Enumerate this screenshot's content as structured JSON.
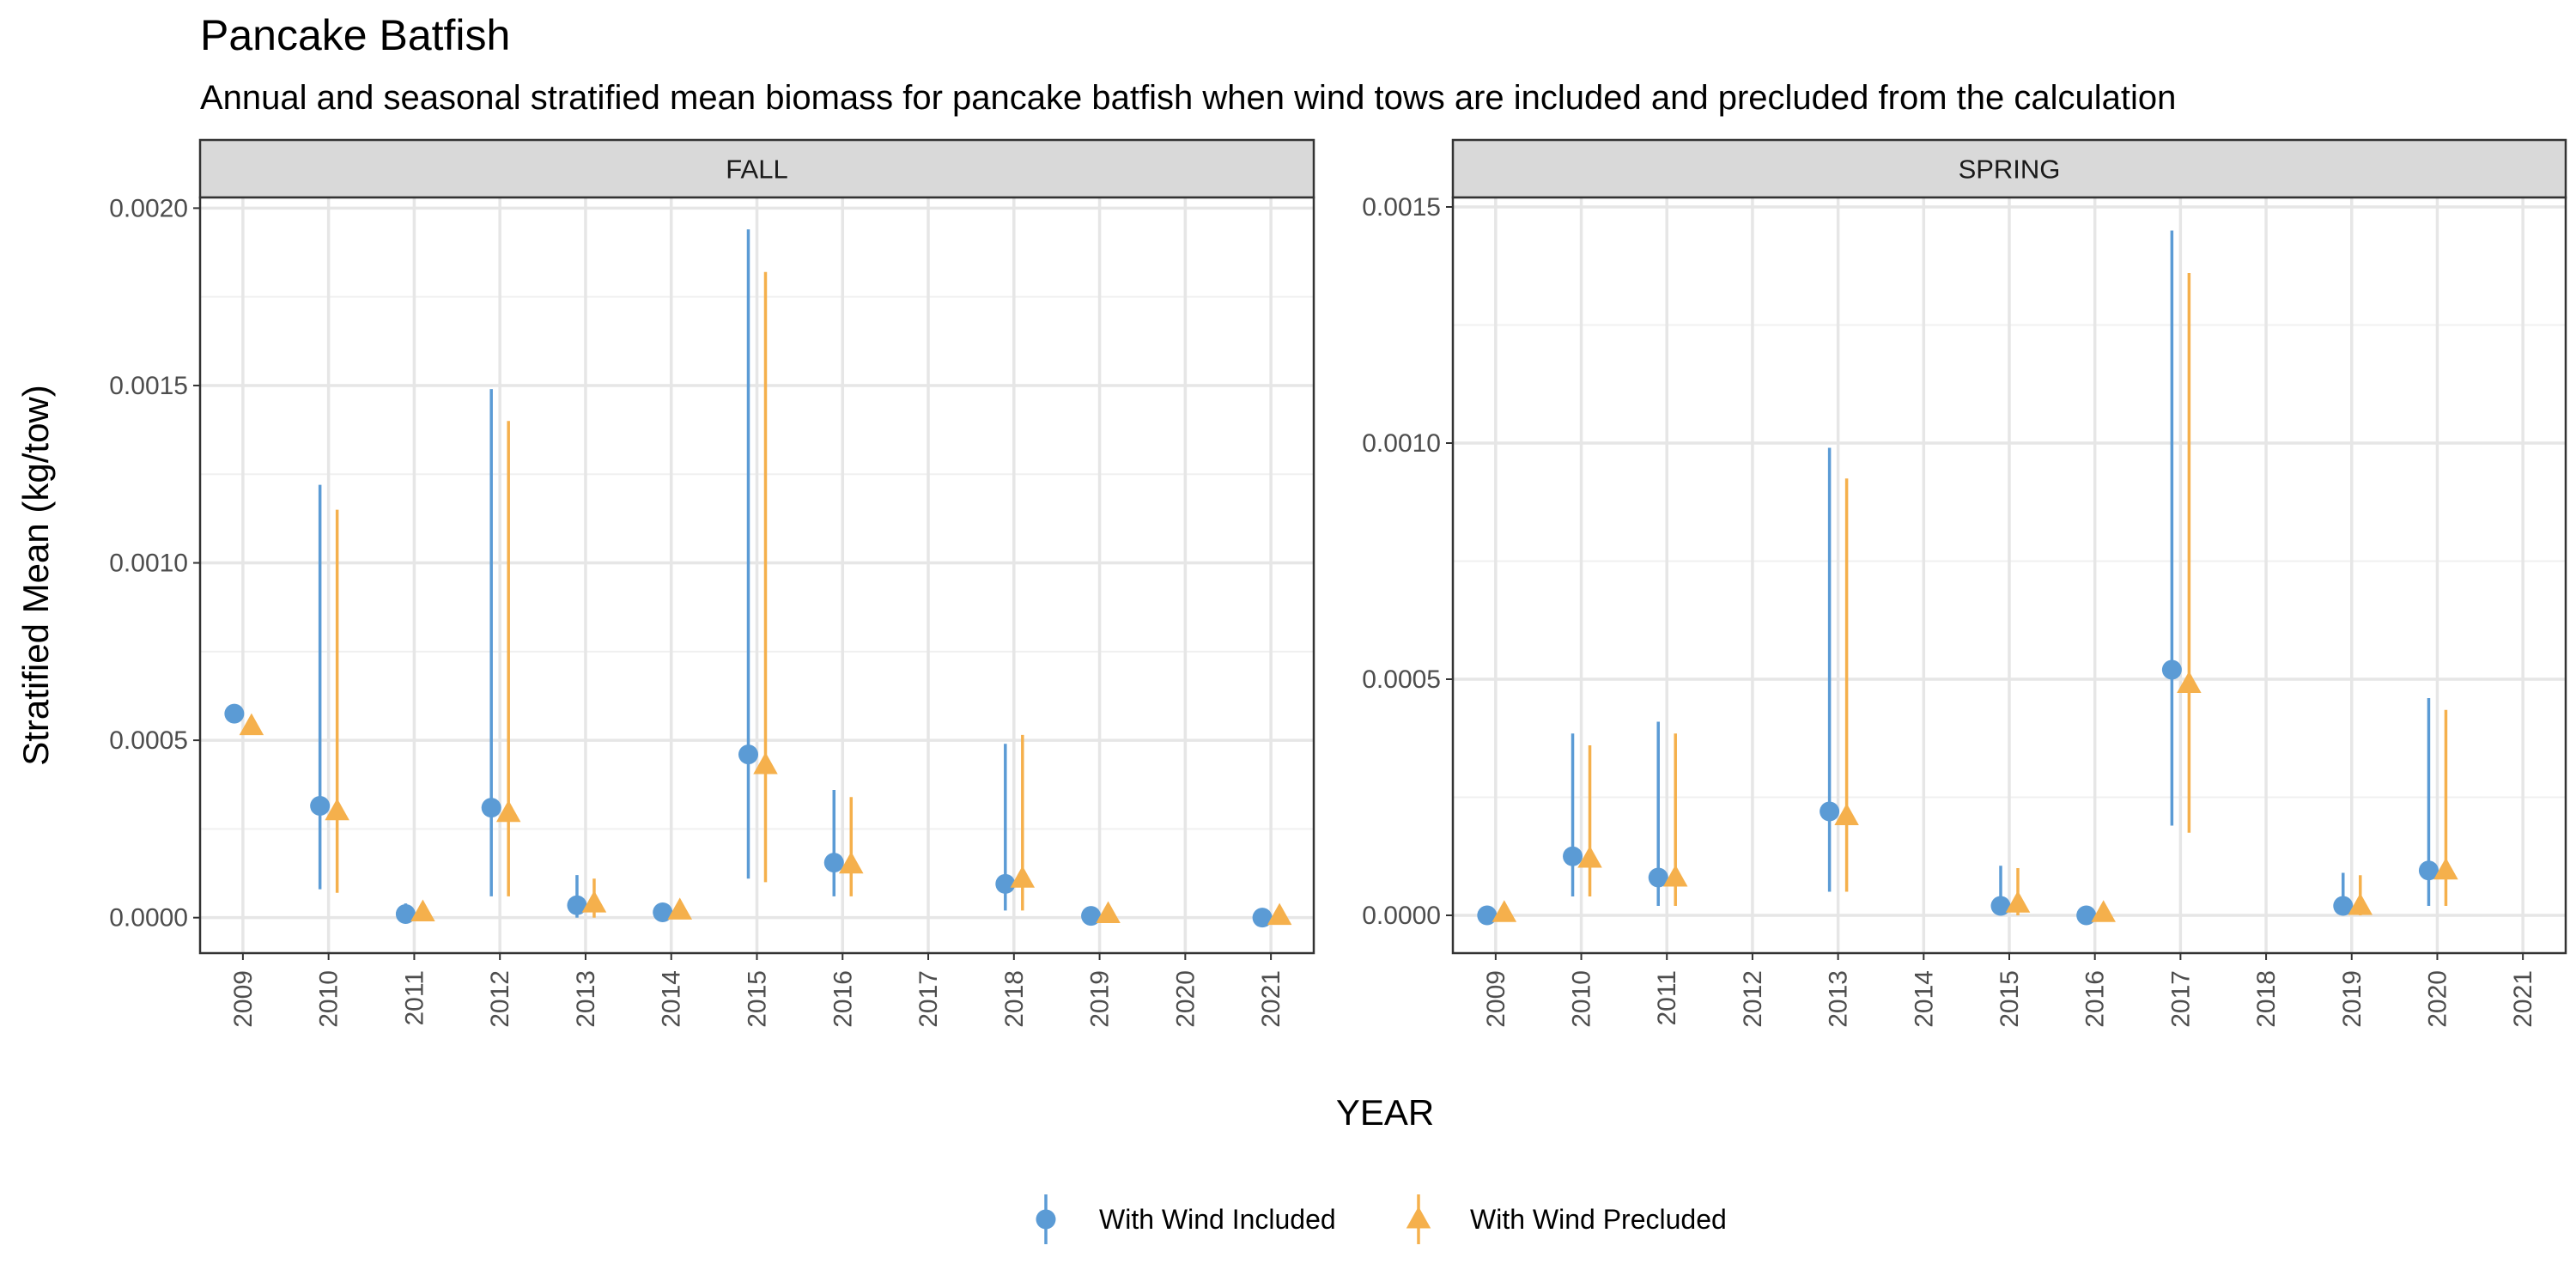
{
  "title": "Pancake Batfish",
  "subtitle": "Annual and seasonal stratified mean biomass for pancake batfish when wind tows are included and precluded from the calculation",
  "chart_data": {
    "type": "scatter",
    "subtype": "point-range",
    "title": "Pancake Batfish",
    "subtitle": "Annual and seasonal stratified mean biomass for pancake batfish when wind tows are included and precluded from the calculation",
    "xlabel": "YEAR",
    "ylabel": "Stratified Mean (kg/tow)",
    "x_categories": [
      "2009",
      "2010",
      "2011",
      "2012",
      "2013",
      "2014",
      "2015",
      "2016",
      "2017",
      "2018",
      "2019",
      "2020",
      "2021"
    ],
    "legend_position": "bottom",
    "grid": true,
    "series_styles": [
      {
        "name": "With Wind Included",
        "color": "#5b9bd5",
        "marker": "circle"
      },
      {
        "name": "With Wind Precluded",
        "color": "#f5b04c",
        "marker": "triangle"
      }
    ],
    "panels": [
      {
        "name": "FALL",
        "ylim": [
          -0.0001,
          0.00203
        ],
        "yticks": [
          0.0,
          0.0005,
          0.001,
          0.0015,
          0.002
        ],
        "ytick_labels": [
          "0.0000",
          "0.0005",
          "0.0010",
          "0.0015",
          "0.0020"
        ],
        "series": [
          {
            "name": "With Wind Included",
            "points": [
              {
                "x": "2009",
                "y": 0.000575,
                "lo": null,
                "hi": null
              },
              {
                "x": "2010",
                "y": 0.000315,
                "lo": 8e-05,
                "hi": 0.00122
              },
              {
                "x": "2011",
                "y": 1e-05,
                "lo": 0.0,
                "hi": 4e-05
              },
              {
                "x": "2012",
                "y": 0.00031,
                "lo": 6e-05,
                "hi": 0.00149
              },
              {
                "x": "2013",
                "y": 3.5e-05,
                "lo": 0.0,
                "hi": 0.00012
              },
              {
                "x": "2014",
                "y": 1.5e-05,
                "lo": 0.0,
                "hi": 4e-05
              },
              {
                "x": "2015",
                "y": 0.00046,
                "lo": 0.00011,
                "hi": 0.00194
              },
              {
                "x": "2016",
                "y": 0.000155,
                "lo": 6e-05,
                "hi": 0.00036
              },
              {
                "x": "2018",
                "y": 9.5e-05,
                "lo": 2e-05,
                "hi": 0.00049
              },
              {
                "x": "2019",
                "y": 5e-06,
                "lo": 0.0,
                "hi": 2e-05
              },
              {
                "x": "2021",
                "y": 0.0,
                "lo": null,
                "hi": null
              }
            ]
          },
          {
            "name": "With Wind Precluded",
            "points": [
              {
                "x": "2009",
                "y": 0.00054,
                "lo": null,
                "hi": null
              },
              {
                "x": "2010",
                "y": 0.0003,
                "lo": 7e-05,
                "hi": 0.00115
              },
              {
                "x": "2011",
                "y": 1.5e-05,
                "lo": 0.0,
                "hi": 4e-05
              },
              {
                "x": "2012",
                "y": 0.000295,
                "lo": 6e-05,
                "hi": 0.0014
              },
              {
                "x": "2013",
                "y": 4e-05,
                "lo": 0.0,
                "hi": 0.00011
              },
              {
                "x": "2014",
                "y": 2e-05,
                "lo": 0.0,
                "hi": 4e-05
              },
              {
                "x": "2015",
                "y": 0.00043,
                "lo": 0.0001,
                "hi": 0.00182
              },
              {
                "x": "2016",
                "y": 0.00015,
                "lo": 6e-05,
                "hi": 0.00034
              },
              {
                "x": "2018",
                "y": 0.00011,
                "lo": 2e-05,
                "hi": 0.000515
              },
              {
                "x": "2019",
                "y": 1e-05,
                "lo": 0.0,
                "hi": 3e-05
              },
              {
                "x": "2021",
                "y": 5e-06,
                "lo": null,
                "hi": null
              }
            ]
          }
        ]
      },
      {
        "name": "SPRING",
        "ylim": [
          -8e-05,
          0.00152
        ],
        "yticks": [
          0.0,
          0.0005,
          0.001,
          0.0015
        ],
        "ytick_labels": [
          "0.0000",
          "0.0005",
          "0.0010",
          "0.0015"
        ],
        "series": [
          {
            "name": "With Wind Included",
            "points": [
              {
                "x": "2009",
                "y": 0.0,
                "lo": null,
                "hi": null
              },
              {
                "x": "2010",
                "y": 0.000125,
                "lo": 4e-05,
                "hi": 0.000385
              },
              {
                "x": "2011",
                "y": 8e-05,
                "lo": 2e-05,
                "hi": 0.00041
              },
              {
                "x": "2013",
                "y": 0.00022,
                "lo": 5e-05,
                "hi": 0.00099
              },
              {
                "x": "2015",
                "y": 2e-05,
                "lo": 0.0,
                "hi": 0.000105
              },
              {
                "x": "2016",
                "y": 0.0,
                "lo": null,
                "hi": null
              },
              {
                "x": "2017",
                "y": 0.00052,
                "lo": 0.00019,
                "hi": 0.00145
              },
              {
                "x": "2019",
                "y": 2e-05,
                "lo": 0.0,
                "hi": 9e-05
              },
              {
                "x": "2020",
                "y": 9.5e-05,
                "lo": 2e-05,
                "hi": 0.00046
              }
            ]
          },
          {
            "name": "With Wind Precluded",
            "points": [
              {
                "x": "2009",
                "y": 5e-06,
                "lo": null,
                "hi": null
              },
              {
                "x": "2010",
                "y": 0.00012,
                "lo": 4e-05,
                "hi": 0.00036
              },
              {
                "x": "2011",
                "y": 8e-05,
                "lo": 2e-05,
                "hi": 0.000385
              },
              {
                "x": "2013",
                "y": 0.00021,
                "lo": 5e-05,
                "hi": 0.000925
              },
              {
                "x": "2015",
                "y": 2.5e-05,
                "lo": 0.0,
                "hi": 0.0001
              },
              {
                "x": "2016",
                "y": 5e-06,
                "lo": null,
                "hi": null
              },
              {
                "x": "2017",
                "y": 0.00049,
                "lo": 0.000175,
                "hi": 0.00136
              },
              {
                "x": "2019",
                "y": 2e-05,
                "lo": 0.0,
                "hi": 8.5e-05
              },
              {
                "x": "2020",
                "y": 9.5e-05,
                "lo": 2e-05,
                "hi": 0.000435
              }
            ]
          }
        ]
      }
    ]
  }
}
